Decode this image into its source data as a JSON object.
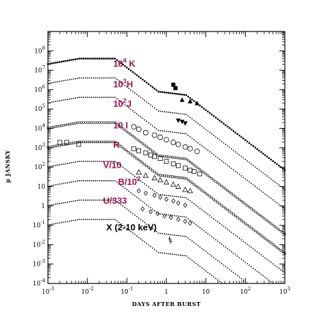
{
  "chart_data": {
    "type": "line",
    "xlabel": "DAYS AFTER BURST",
    "ylabel": "μ JANSKY",
    "xscale": "log",
    "yscale": "log",
    "xlim": [
      0.001,
      1000
    ],
    "ylim": [
      0.0001,
      1000000000
    ],
    "x_ticks": [
      {
        "base": "10",
        "exp": "-3"
      },
      {
        "base": "10",
        "exp": "-2"
      },
      {
        "base": "10",
        "exp": "-1"
      },
      {
        "base": "1",
        "exp": ""
      },
      {
        "base": "10",
        "exp": ""
      },
      {
        "base": "10",
        "exp": "2"
      },
      {
        "base": "10",
        "exp": "3"
      }
    ],
    "y_ticks": [
      {
        "base": "10",
        "exp": "-4"
      },
      {
        "base": "10",
        "exp": "-3"
      },
      {
        "base": "10",
        "exp": "-2"
      },
      {
        "base": "10",
        "exp": "-1"
      },
      {
        "base": "1",
        "exp": ""
      },
      {
        "base": "10",
        "exp": ""
      },
      {
        "base": "10",
        "exp": "2"
      },
      {
        "base": "10",
        "exp": "3"
      },
      {
        "base": "10",
        "exp": "4"
      },
      {
        "base": "10",
        "exp": "5"
      },
      {
        "base": "10",
        "exp": "6"
      },
      {
        "base": "10",
        "exp": "7"
      },
      {
        "base": "10",
        "exp": "8"
      }
    ],
    "label_color": "#a0104a",
    "x_label_color": "#000000",
    "series": [
      {
        "base": "10",
        "sup": "4",
        "suffix": " K",
        "label_x": 0.045,
        "label_y": 15000000,
        "scale": 1,
        "plateau": 40000000,
        "late": 20000,
        "line": "dashdot",
        "color": "#000000",
        "obs": {
          "marker": "filled-square",
          "points": [
            [
              1.5,
              1800000
            ],
            [
              1.7,
              1200000
            ]
          ]
        }
      },
      {
        "base": "10",
        "sup": "3",
        "suffix": "H",
        "label_x": 0.045,
        "label_y": 1300000,
        "scale": 1,
        "plateau": 4000000,
        "late": 2000,
        "line": "dotted",
        "color": "#000000",
        "obs": {
          "marker": "filled-triangle",
          "points": [
            [
              2.5,
              300000
            ],
            [
              4.0,
              250000
            ],
            [
              6.0,
              200000
            ]
          ]
        }
      },
      {
        "base": "10",
        "sup": "2",
        "suffix": "J",
        "label_x": 0.045,
        "label_y": 130000,
        "scale": 1,
        "plateau": 400000,
        "late": 200,
        "line": "dotted",
        "color": "#000000",
        "obs": {
          "marker": "filled-down-triangle",
          "points": [
            [
              2.0,
              25000
            ],
            [
              2.5,
              22000
            ],
            [
              3.0,
              18000
            ]
          ]
        }
      },
      {
        "base": "10 I",
        "sup": "",
        "suffix": "",
        "label_x": 0.045,
        "label_y": 10000,
        "scale": 1,
        "plateau": 20000,
        "late": 10,
        "line": "open-circle",
        "color": "#000000",
        "obs": {
          "marker": "open-circle",
          "points": [
            [
              0.15,
              12000
            ],
            [
              0.2,
              9000
            ],
            [
              0.3,
              6000
            ],
            [
              0.5,
              4500
            ],
            [
              0.7,
              3500
            ],
            [
              1.0,
              2600
            ],
            [
              1.5,
              1900
            ],
            [
              2.0,
              1500
            ],
            [
              3.0,
              1100
            ],
            [
              4.0,
              900
            ],
            [
              6.0,
              650
            ]
          ]
        }
      },
      {
        "base": "R",
        "sup": "",
        "suffix": "",
        "label_x": 0.045,
        "label_y": 1000,
        "scale": 1,
        "plateau": 2000,
        "late": 1,
        "line": "open-square",
        "color": "#000000",
        "obs": {
          "marker": "open-square",
          "points": [
            [
              0.002,
              1900
            ],
            [
              0.003,
              1900
            ],
            [
              0.006,
              1500
            ],
            [
              0.15,
              900
            ],
            [
              0.2,
              700
            ],
            [
              0.3,
              550
            ],
            [
              0.4,
              420
            ],
            [
              0.5,
              350
            ],
            [
              0.7,
              280
            ],
            [
              1.0,
              200
            ],
            [
              1.5,
              150
            ],
            [
              2.0,
              120
            ],
            [
              3.0,
              90
            ],
            [
              4.0,
              70
            ],
            [
              5.0,
              60
            ],
            [
              7.0,
              45
            ]
          ]
        }
      },
      {
        "base": "V/10",
        "sup": "",
        "suffix": "",
        "label_x": 0.025,
        "label_y": 90,
        "scale": 1,
        "plateau": 200,
        "late": 0.1,
        "line": "dotted",
        "color": "#000000",
        "obs": {
          "marker": "open-triangle",
          "points": [
            [
              0.2,
              55
            ],
            [
              0.3,
              38
            ],
            [
              0.5,
              28
            ],
            [
              0.7,
              22
            ],
            [
              1.0,
              17
            ],
            [
              1.5,
              13
            ],
            [
              2.0,
              10
            ],
            [
              3.0,
              7
            ],
            [
              4.0,
              6
            ]
          ]
        }
      },
      {
        "base": "B/10",
        "sup": "2",
        "suffix": "",
        "label_x": 0.06,
        "label_y": 12,
        "scale": 1,
        "plateau": 20,
        "late": 0.01,
        "line": "dotted",
        "color": "#000000",
        "obs": {
          "marker": "open-diamond",
          "points": [
            [
              0.2,
              6
            ],
            [
              0.3,
              4.5
            ],
            [
              0.5,
              3.5
            ],
            [
              0.7,
              2.8
            ],
            [
              1.0,
              2.2
            ],
            [
              1.5,
              1.8
            ],
            [
              2.0,
              1.4
            ],
            [
              3.0,
              1.1
            ]
          ]
        }
      },
      {
        "base": "U/333",
        "sup": "",
        "suffix": "",
        "label_x": 0.025,
        "label_y": 1.3,
        "scale": 1,
        "plateau": 2,
        "late": 0.001,
        "line": "dotted",
        "color": "#000000",
        "obs": {
          "marker": "open-diamond",
          "points": [
            [
              0.25,
              0.7
            ],
            [
              0.4,
              0.5
            ],
            [
              0.6,
              0.4
            ],
            [
              0.9,
              0.3
            ],
            [
              1.3,
              0.25
            ],
            [
              2.0,
              0.2
            ],
            [
              3.0,
              0.16
            ],
            [
              4.0,
              0.13
            ]
          ]
        }
      },
      {
        "base": "X (2-10 keV)",
        "sup": "",
        "suffix": "",
        "label_x": 0.03,
        "label_y": 0.055,
        "scale": 1,
        "plateau": 0.2,
        "late": 0.0001,
        "line": "dotted",
        "color": "#000000",
        "label_black": true,
        "obs": {
          "marker": "cross",
          "points": [
            [
              1.2,
              0.02
            ],
            [
              1.3,
              0.015
            ]
          ]
        }
      }
    ]
  }
}
